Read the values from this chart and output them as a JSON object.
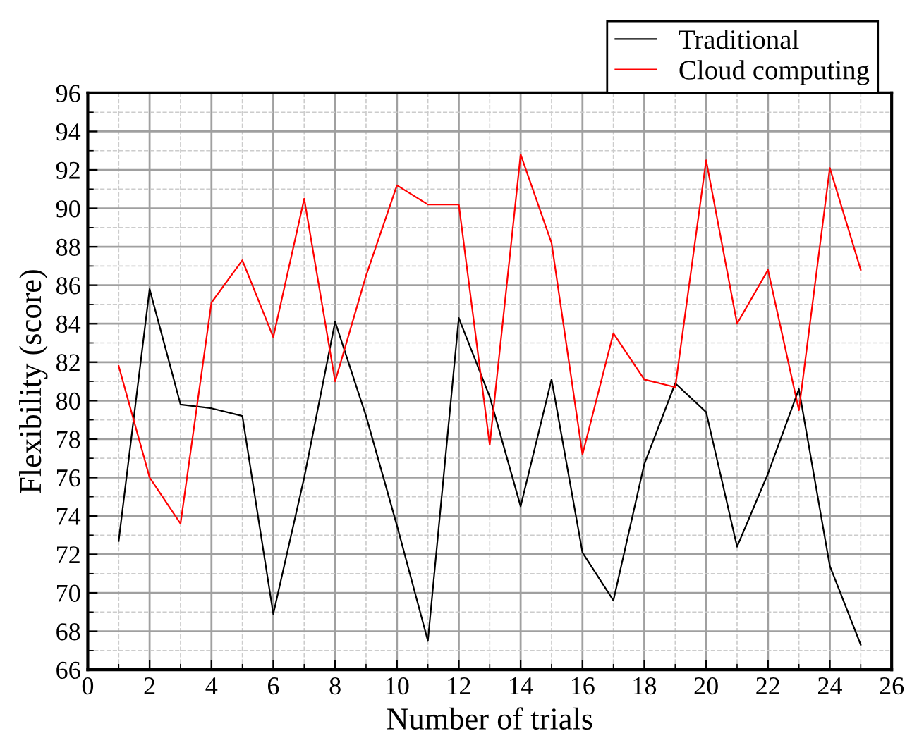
{
  "chart_data": {
    "type": "line",
    "xlabel": "Number of trials",
    "ylabel": "Flexibility (score)",
    "x": [
      1,
      2,
      3,
      4,
      5,
      6,
      7,
      8,
      9,
      10,
      11,
      12,
      13,
      14,
      15,
      16,
      17,
      18,
      19,
      20,
      21,
      22,
      23,
      24,
      25
    ],
    "series": [
      {
        "name": "Traditional",
        "color": "#000000",
        "values": [
          72.7,
          85.8,
          79.8,
          79.6,
          79.2,
          68.9,
          76.0,
          84.1,
          79.2,
          73.5,
          67.5,
          84.3,
          80.2,
          74.5,
          81.1,
          72.1,
          69.6,
          76.7,
          80.9,
          79.4,
          72.4,
          76.2,
          80.6,
          71.4,
          67.3
        ]
      },
      {
        "name": "Cloud computing",
        "color": "#ff0000",
        "values": [
          81.8,
          76.0,
          73.6,
          85.1,
          87.3,
          83.3,
          90.5,
          81.0,
          86.5,
          91.2,
          90.2,
          90.2,
          77.7,
          92.8,
          88.2,
          77.2,
          83.5,
          81.1,
          80.7,
          92.5,
          84.0,
          86.8,
          79.5,
          92.1,
          86.8
        ]
      }
    ],
    "xlim": [
      0,
      26
    ],
    "xticks": [
      0,
      2,
      4,
      6,
      8,
      10,
      12,
      14,
      16,
      18,
      20,
      22,
      24,
      26
    ],
    "ylim": [
      66,
      96
    ],
    "yticks": [
      66,
      68,
      70,
      72,
      74,
      76,
      78,
      80,
      82,
      84,
      86,
      88,
      90,
      92,
      94,
      96
    ],
    "grid": true,
    "legend": "top right",
    "marker": "none",
    "line_style": "solid"
  }
}
